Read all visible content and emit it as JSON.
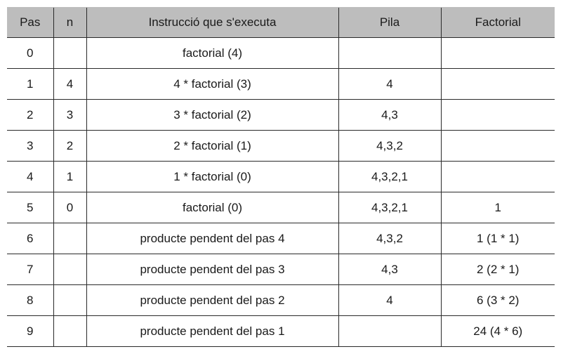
{
  "table": {
    "headers": [
      "Pas",
      "n",
      "Instrucció que s'executa",
      "Pila",
      "Factorial"
    ],
    "rows": [
      [
        "0",
        "",
        "factorial (4)",
        "",
        ""
      ],
      [
        "1",
        "4",
        "4 * factorial (3)",
        "4",
        ""
      ],
      [
        "2",
        "3",
        "3 * factorial (2)",
        "4,3",
        ""
      ],
      [
        "3",
        "2",
        "2 * factorial (1)",
        "4,3,2",
        ""
      ],
      [
        "4",
        "1",
        "1 * factorial (0)",
        "4,3,2,1",
        ""
      ],
      [
        "5",
        "0",
        "factorial (0)",
        "4,3,2,1",
        "1"
      ],
      [
        "6",
        "",
        "producte pendent del pas 4",
        "4,3,2",
        "1 (1 * 1)"
      ],
      [
        "7",
        "",
        "producte pendent del pas 3",
        "4,3",
        "2 (2 * 1)"
      ],
      [
        "8",
        "",
        "producte pendent del pas 2",
        "4",
        "6 (3 * 2)"
      ],
      [
        "9",
        "",
        "producte pendent del pas 1",
        "",
        "24 (4 * 6)"
      ]
    ]
  }
}
